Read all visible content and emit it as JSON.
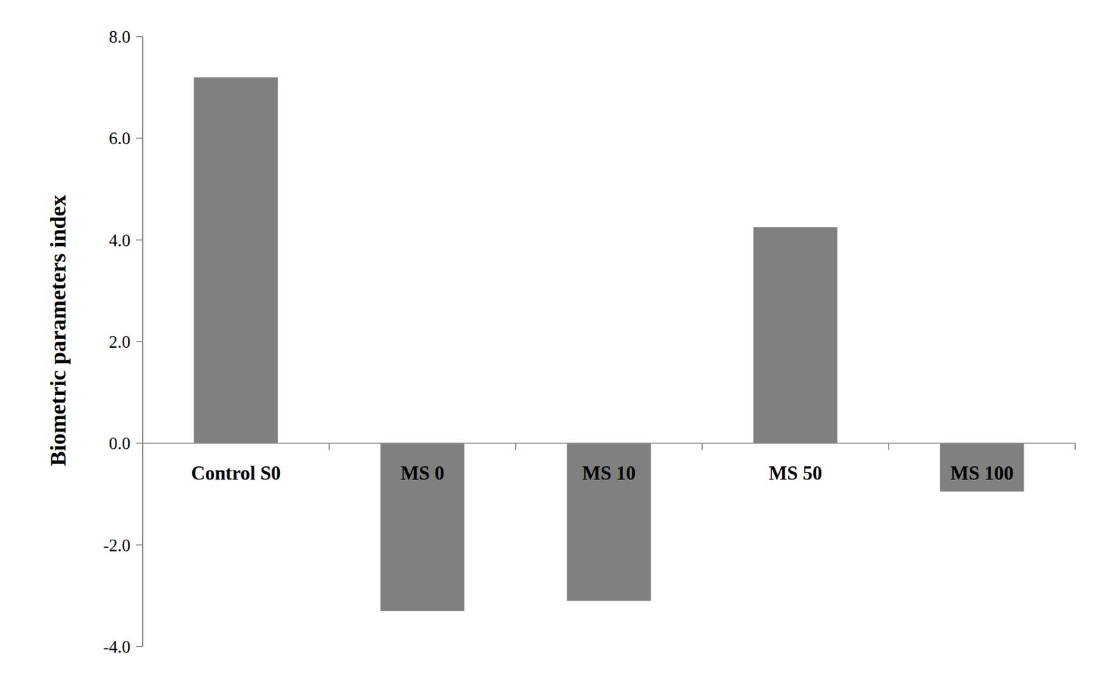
{
  "chart_data": {
    "type": "bar",
    "y_label": "Biometric parameters index",
    "categories": [
      "Control S0",
      "MS 0",
      "MS 10",
      "MS 50",
      "MS 100"
    ],
    "values": [
      7.2,
      -3.3,
      -3.1,
      4.25,
      -0.95
    ],
    "color": "#808080",
    "ylim": [
      -4,
      8
    ],
    "yticks": [
      {
        "value": -4,
        "label": "-4.0"
      },
      {
        "value": -2,
        "label": "-2.0"
      },
      {
        "value": 0,
        "label": "0.0"
      },
      {
        "value": 2,
        "label": "2.0"
      },
      {
        "value": 4,
        "label": "4.0"
      },
      {
        "value": 6,
        "label": "6.0"
      },
      {
        "value": 8,
        "label": "8.0"
      }
    ],
    "grid": false
  }
}
